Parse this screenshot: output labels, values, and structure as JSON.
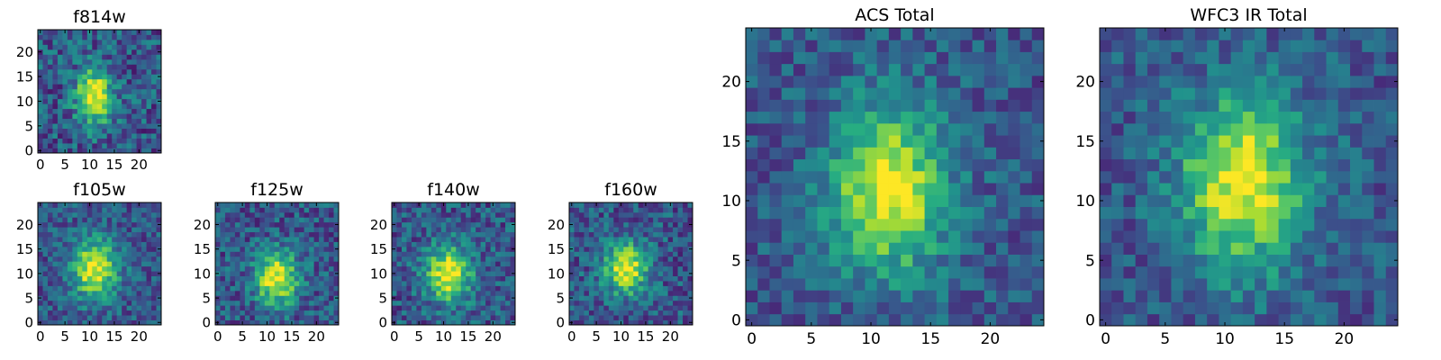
{
  "chart_data": [
    {
      "type": "heatmap",
      "title": "f814w",
      "colormap": "viridis",
      "grid_size": 25,
      "peak": [
        11,
        11
      ],
      "spread": [
        2.6,
        4.0
      ],
      "noise": 0.22,
      "seed": 11,
      "xticks": [
        0,
        5,
        10,
        15,
        20
      ],
      "yticks": [
        0,
        5,
        10,
        15,
        20
      ]
    },
    {
      "type": "heatmap",
      "title": "f105w",
      "colormap": "viridis",
      "grid_size": 25,
      "peak": [
        11,
        11
      ],
      "spread": [
        3.2,
        4.2
      ],
      "noise": 0.18,
      "seed": 23,
      "xticks": [
        0,
        5,
        10,
        15,
        20
      ],
      "yticks": [
        0,
        5,
        10,
        15,
        20
      ]
    },
    {
      "type": "heatmap",
      "title": "f125w",
      "colormap": "viridis",
      "grid_size": 25,
      "peak": [
        12,
        9
      ],
      "spread": [
        3.0,
        3.8
      ],
      "noise": 0.2,
      "seed": 37,
      "xticks": [
        0,
        5,
        10,
        15,
        20
      ],
      "yticks": [
        0,
        5,
        10,
        15,
        20
      ]
    },
    {
      "type": "heatmap",
      "title": "f140w",
      "colormap": "viridis",
      "grid_size": 25,
      "peak": [
        11,
        10
      ],
      "spread": [
        3.2,
        4.0
      ],
      "noise": 0.2,
      "seed": 41,
      "xticks": [
        0,
        5,
        10,
        15,
        20
      ],
      "yticks": [
        0,
        5,
        10,
        15,
        20
      ]
    },
    {
      "type": "heatmap",
      "title": "f160w",
      "colormap": "viridis",
      "grid_size": 25,
      "peak": [
        11,
        11
      ],
      "spread": [
        3.0,
        3.6
      ],
      "noise": 0.2,
      "seed": 53,
      "xticks": [
        0,
        5,
        10,
        15,
        20
      ],
      "yticks": [
        0,
        5,
        10,
        15,
        20
      ]
    },
    {
      "type": "heatmap",
      "title": "ACS Total",
      "colormap": "viridis",
      "grid_size": 25,
      "peak": [
        11.5,
        11
      ],
      "spread": [
        3.4,
        4.8
      ],
      "noise": 0.16,
      "seed": 67,
      "xticks": [
        0,
        5,
        10,
        15,
        20
      ],
      "yticks": [
        0,
        5,
        10,
        15,
        20
      ]
    },
    {
      "type": "heatmap",
      "title": "WFC3 IR Total",
      "colormap": "viridis",
      "grid_size": 25,
      "peak": [
        11.5,
        11.5
      ],
      "spread": [
        3.6,
        5.0
      ],
      "noise": 0.16,
      "seed": 79,
      "xticks": [
        0,
        5,
        10,
        15,
        20
      ],
      "yticks": [
        0,
        5,
        10,
        15,
        20
      ]
    }
  ]
}
